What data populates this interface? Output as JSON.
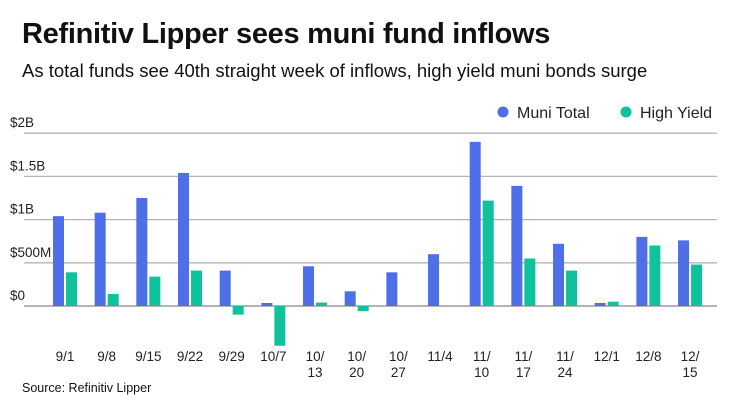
{
  "header": {
    "title": "Refinitiv Lipper sees muni fund inflows",
    "subtitle": "As total funds see 40th straight week of inflows, high yield muni bonds surge"
  },
  "footer": {
    "source": "Source: Refinitiv Lipper"
  },
  "colors": {
    "muni": "#4f6fe8",
    "hy": "#10c29c",
    "grid": "#b5b5b5"
  },
  "chart_data": {
    "type": "bar",
    "title": "Refinitiv Lipper sees muni fund inflows",
    "xlabel": "",
    "ylabel": "",
    "ylim": [
      -0.5,
      2
    ],
    "yticks": [
      0,
      0.5,
      1,
      1.5,
      2
    ],
    "ytick_labels": [
      "$0",
      "$500M",
      "$1B",
      "$1.5B",
      "$2B"
    ],
    "legend_position": "top-right",
    "categories": [
      [
        "9/1"
      ],
      [
        "9/8"
      ],
      [
        "9/15"
      ],
      [
        "9/22"
      ],
      [
        "9/29"
      ],
      [
        "10/7"
      ],
      [
        "10/",
        "13"
      ],
      [
        "10/",
        "20"
      ],
      [
        "10/",
        "27"
      ],
      [
        "11/4"
      ],
      [
        "11/",
        "10"
      ],
      [
        "11/",
        "17"
      ],
      [
        "11/",
        "24"
      ],
      [
        "12/1"
      ],
      [
        "12/8"
      ],
      [
        "12/",
        "15"
      ]
    ],
    "series": [
      {
        "name": "Muni Total",
        "unit": "$B",
        "values": [
          1.04,
          1.08,
          1.25,
          1.54,
          0.41,
          0.035,
          0.46,
          0.17,
          0.39,
          0.6,
          1.9,
          1.39,
          0.72,
          0.035,
          0.8,
          0.76
        ]
      },
      {
        "name": "High Yield",
        "unit": "$B",
        "values": [
          0.39,
          0.14,
          0.34,
          0.41,
          -0.1,
          -0.46,
          0.04,
          -0.06,
          null,
          null,
          1.22,
          0.55,
          0.41,
          0.05,
          0.7,
          0.48
        ]
      }
    ]
  }
}
